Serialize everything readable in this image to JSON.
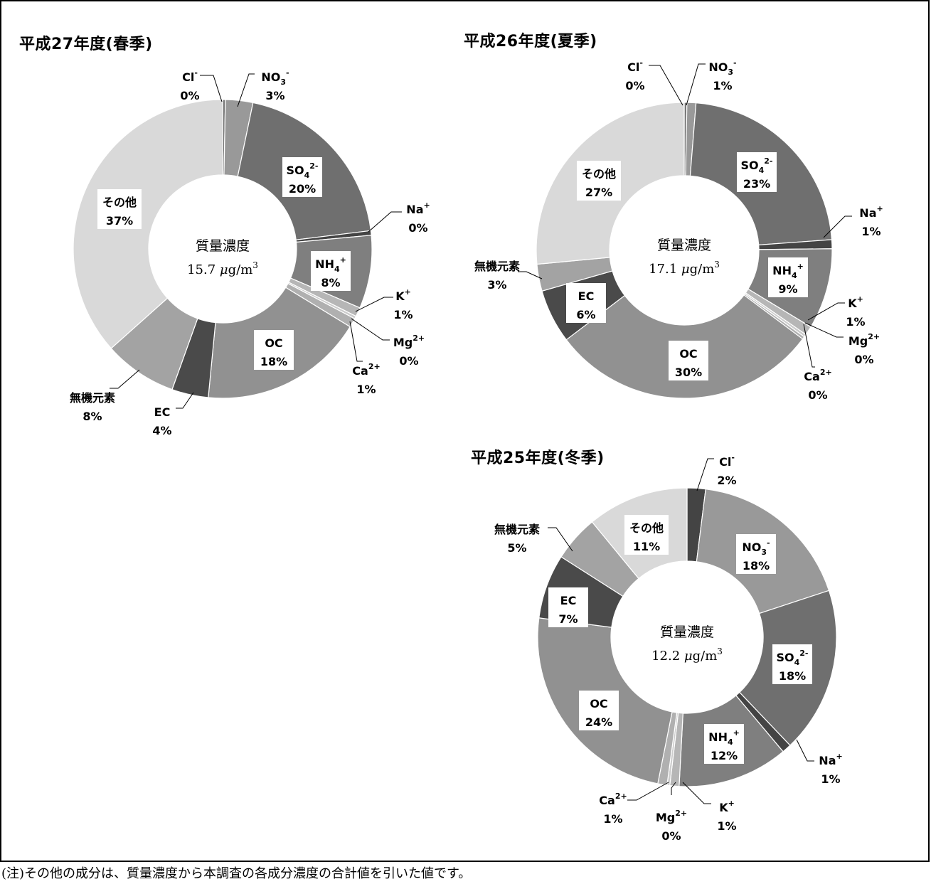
{
  "chart_data": [
    {
      "type": "pie",
      "title": "平成27年度(春季)",
      "center_text": {
        "label": "質量濃度",
        "value": "15.7",
        "unit_mu": "μ",
        "unit_rest": "g/m",
        "unit_exp": "3"
      },
      "series": [
        {
          "values": [
            0.3,
            3,
            20,
            0.5,
            8,
            1,
            0.3,
            1,
            18,
            4,
            8,
            37
          ],
          "colors": [
            "#777777",
            "#999999",
            "#6f6f6f",
            "#444444",
            "#7f7f7f",
            "#b6b6b6",
            "#cccccc",
            "#b0b0b0",
            "#919191",
            "#4a4a4a",
            "#a3a3a3",
            "#d9d9d9"
          ],
          "labels": [
            {
              "base": "Cl",
              "sup": "-",
              "pct": "0%"
            },
            {
              "base": "NO",
              "sub": "3",
              "sup": "-",
              "pct": "3%"
            },
            {
              "base": "SO",
              "sub": "4",
              "sup": "2-",
              "pct": "20%"
            },
            {
              "base": "Na",
              "sup": "+",
              "pct": "0%"
            },
            {
              "base": "NH",
              "sub": "4",
              "sup": "+",
              "pct": "8%"
            },
            {
              "base": "K",
              "sup": "+",
              "pct": "1%"
            },
            {
              "base": "Mg",
              "sup": "2+",
              "pct": "0%"
            },
            {
              "base": "Ca",
              "sup": "2+",
              "pct": "1%"
            },
            {
              "base": "OC",
              "pct": "18%"
            },
            {
              "base": "EC",
              "pct": "4%"
            },
            {
              "base": "無機元素",
              "pct": "8%"
            },
            {
              "base": "その他",
              "pct": "37%"
            }
          ]
        }
      ]
    },
    {
      "type": "pie",
      "title": "平成26年度(夏季)",
      "center_text": {
        "label": "質量濃度",
        "value": "17.1",
        "unit_mu": "μ",
        "unit_rest": "g/m",
        "unit_exp": "3"
      },
      "series": [
        {
          "values": [
            0.3,
            1,
            23,
            1,
            9,
            1,
            0.3,
            0.3,
            30,
            6,
            3,
            27
          ],
          "colors": [
            "#777777",
            "#999999",
            "#6f6f6f",
            "#444444",
            "#7f7f7f",
            "#b6b6b6",
            "#cccccc",
            "#b0b0b0",
            "#919191",
            "#4a4a4a",
            "#a3a3a3",
            "#d9d9d9"
          ],
          "labels": [
            {
              "base": "Cl",
              "sup": "-",
              "pct": "0%"
            },
            {
              "base": "NO",
              "sub": "3",
              "sup": "-",
              "pct": "1%"
            },
            {
              "base": "SO",
              "sub": "4",
              "sup": "2-",
              "pct": "23%"
            },
            {
              "base": "Na",
              "sup": "+",
              "pct": "1%"
            },
            {
              "base": "NH",
              "sub": "4",
              "sup": "+",
              "pct": "9%"
            },
            {
              "base": "K",
              "sup": "+",
              "pct": "1%"
            },
            {
              "base": "Mg",
              "sup": "2+",
              "pct": "0%"
            },
            {
              "base": "Ca",
              "sup": "2+",
              "pct": "0%"
            },
            {
              "base": "OC",
              "pct": "30%"
            },
            {
              "base": "EC",
              "pct": "6%"
            },
            {
              "base": "無機元素",
              "pct": "3%"
            },
            {
              "base": "その他",
              "pct": "27%"
            }
          ]
        }
      ]
    },
    {
      "type": "pie",
      "title": "平成25年度(冬季)",
      "center_text": {
        "label": "質量濃度",
        "value": "12.2",
        "unit_mu": "μ",
        "unit_rest": "g/m",
        "unit_exp": "3"
      },
      "series": [
        {
          "values": [
            2,
            18,
            18,
            1,
            12,
            1,
            0.3,
            1,
            24,
            7,
            5,
            11
          ],
          "colors": [
            "#444444",
            "#999999",
            "#6f6f6f",
            "#444444",
            "#7f7f7f",
            "#b6b6b6",
            "#cccccc",
            "#b0b0b0",
            "#919191",
            "#4a4a4a",
            "#a3a3a3",
            "#d9d9d9"
          ],
          "labels": [
            {
              "base": "Cl",
              "sup": "-",
              "pct": "2%"
            },
            {
              "base": "NO",
              "sub": "3",
              "sup": "-",
              "pct": "18%"
            },
            {
              "base": "SO",
              "sub": "4",
              "sup": "2-",
              "pct": "18%"
            },
            {
              "base": "Na",
              "sup": "+",
              "pct": "1%"
            },
            {
              "base": "NH",
              "sub": "4",
              "sup": "+",
              "pct": "12%"
            },
            {
              "base": "K",
              "sup": "+",
              "pct": "1%"
            },
            {
              "base": "Mg",
              "sup": "2+",
              "pct": "0%"
            },
            {
              "base": "Ca",
              "sup": "2+",
              "pct": "1%"
            },
            {
              "base": "OC",
              "pct": "24%"
            },
            {
              "base": "EC",
              "pct": "7%"
            },
            {
              "base": "無機元素",
              "pct": "5%"
            },
            {
              "base": "その他",
              "pct": "11%"
            }
          ]
        }
      ]
    }
  ],
  "note": "(注)その他の成分は、質量濃度から本調査の各成分濃度の合計値を引いた値です。"
}
